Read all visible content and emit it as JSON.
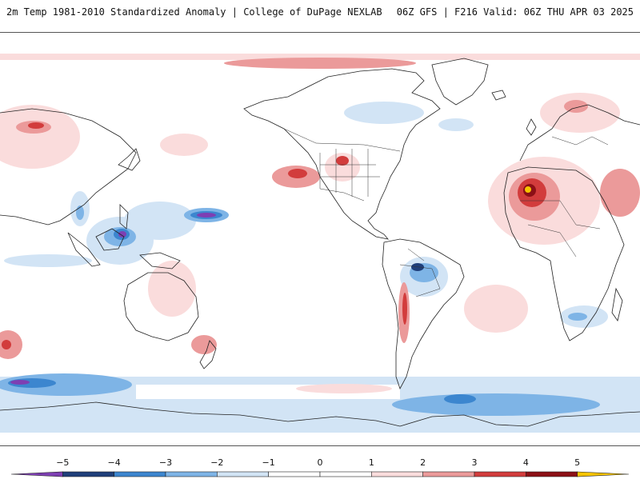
{
  "header": {
    "title_left": "2m Temp 1981-2010 Standardized Anomaly | College of DuPage NEXLAB",
    "title_right": "06Z GFS | F216 Valid: 06Z THU APR 03 2025"
  },
  "colorbar": {
    "min": -6,
    "max": 6,
    "ticks": [
      "-5",
      "-4",
      "-3",
      "-2",
      "-1",
      "0",
      "1",
      "2",
      "3",
      "4",
      "5"
    ],
    "tick_values": [
      -5,
      -4,
      -3,
      -2,
      -1,
      0,
      1,
      2,
      3,
      4,
      5
    ],
    "bins": [
      {
        "from": -6,
        "to": -5,
        "color": "#7e3fb3"
      },
      {
        "from": -5,
        "to": -4,
        "color": "#1f3f7a"
      },
      {
        "from": -4,
        "to": -3,
        "color": "#3c86cf"
      },
      {
        "from": -3,
        "to": -2,
        "color": "#7eb4e6"
      },
      {
        "from": -2,
        "to": -1,
        "color": "#d2e4f5"
      },
      {
        "from": -1,
        "to": 0,
        "color": "#ffffff"
      },
      {
        "from": 0,
        "to": 1,
        "color": "#ffffff"
      },
      {
        "from": 1,
        "to": 2,
        "color": "#fadcdc"
      },
      {
        "from": 2,
        "to": 3,
        "color": "#eb9a9a"
      },
      {
        "from": 3,
        "to": 4,
        "color": "#d23c3c"
      },
      {
        "from": 4,
        "to": 5,
        "color": "#8c1016"
      },
      {
        "from": 5,
        "to": 6,
        "color": "#f6c400"
      }
    ]
  },
  "map": {
    "projection": "equirectangular, centered near the date line",
    "coastline_color": "#222222",
    "ocean_color": "#ffffff"
  }
}
